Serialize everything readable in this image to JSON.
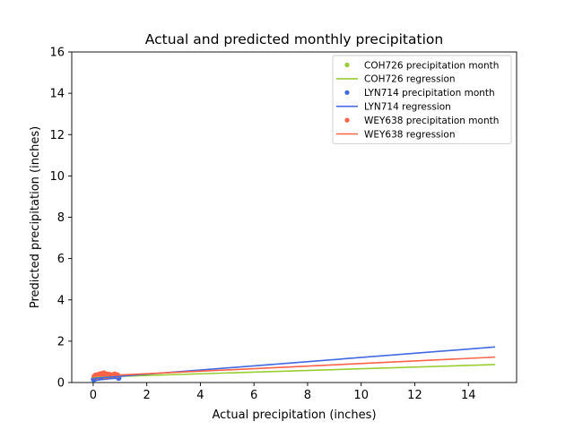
{
  "chart_data": {
    "type": "scatter",
    "title": "Actual and predicted monthly precipitation",
    "xlabel": "Actual precipitation (inches)",
    "ylabel": "Predicted precipitation (inches)",
    "xlim": [
      -0.8,
      15.8
    ],
    "ylim": [
      0,
      16
    ],
    "xticks": [
      0,
      2,
      4,
      6,
      8,
      10,
      12,
      14
    ],
    "yticks": [
      0,
      2,
      4,
      6,
      8,
      10,
      12,
      14,
      16
    ],
    "grid": false,
    "legend_position": "top-right",
    "legend": [
      {
        "label": "COH726 precipitation month",
        "kind": "points",
        "series": "COH726"
      },
      {
        "label": "COH726 regression",
        "kind": "line",
        "series": "COH726"
      },
      {
        "label": "LYN714 precipitation month",
        "kind": "points",
        "series": "LYN714"
      },
      {
        "label": "LYN714 regression",
        "kind": "line",
        "series": "LYN714"
      },
      {
        "label": "WEY638 precipitation month",
        "kind": "points",
        "series": "WEY638"
      },
      {
        "label": "WEY638 regression",
        "kind": "line",
        "series": "WEY638"
      }
    ],
    "series": [
      {
        "name": "COH726",
        "color": "#9acd32",
        "points": [
          [
            0.05,
            0.27
          ],
          [
            0.1,
            0.28
          ],
          [
            0.15,
            0.3
          ],
          [
            0.2,
            0.3
          ],
          [
            0.3,
            0.31
          ],
          [
            0.4,
            0.33
          ],
          [
            0.5,
            0.32
          ],
          [
            0.6,
            0.34
          ],
          [
            0.7,
            0.35
          ],
          [
            0.8,
            0.36
          ]
        ],
        "regression": {
          "x": [
            0,
            15
          ],
          "y": [
            0.26,
            0.87
          ]
        }
      },
      {
        "name": "LYN714",
        "color": "#4169e1",
        "points": [
          [
            0.02,
            0.15
          ],
          [
            0.05,
            0.18
          ],
          [
            0.1,
            0.2
          ],
          [
            0.2,
            0.22
          ],
          [
            0.3,
            0.24
          ],
          [
            0.4,
            0.25
          ],
          [
            0.5,
            0.26
          ],
          [
            0.6,
            0.28
          ],
          [
            0.7,
            0.29
          ],
          [
            0.8,
            0.3
          ],
          [
            0.95,
            0.22
          ]
        ],
        "regression": {
          "x": [
            0,
            15
          ],
          "y": [
            0.2,
            1.72
          ]
        }
      },
      {
        "name": "WEY638",
        "color": "#ff6347",
        "points": [
          [
            0.05,
            0.3
          ],
          [
            0.1,
            0.35
          ],
          [
            0.15,
            0.28
          ],
          [
            0.2,
            0.38
          ],
          [
            0.25,
            0.32
          ],
          [
            0.3,
            0.42
          ],
          [
            0.35,
            0.36
          ],
          [
            0.4,
            0.45
          ],
          [
            0.45,
            0.3
          ],
          [
            0.5,
            0.4
          ],
          [
            0.55,
            0.33
          ],
          [
            0.6,
            0.38
          ],
          [
            0.7,
            0.35
          ],
          [
            0.8,
            0.4
          ],
          [
            0.9,
            0.36
          ]
        ],
        "regression": {
          "x": [
            0,
            15
          ],
          "y": [
            0.3,
            1.23
          ]
        }
      }
    ]
  }
}
